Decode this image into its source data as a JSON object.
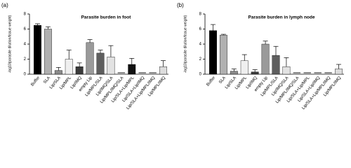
{
  "chart_data": [
    {
      "type": "bar",
      "panel": "(a)",
      "title": "Parasite burden in foot",
      "ylabel": "-log10(parasite dilution/tissue weight)",
      "categories": [
        "Buffer",
        "SLA",
        "Lip/SLA",
        "Lip/MPL",
        "Lip/IMQ",
        "empty Lip",
        "Lip/MPL/SLA",
        "Lip/IMQ/SLA",
        "Lip/MPL/IMQ/SLA",
        "Lip/SLA+Lip/MPL",
        "Lip/SLA+Lip/IMQ",
        "Lip/SLA+Lip/MPL/IMQ",
        "Lip/MPL/IMQ"
      ],
      "values": [
        6.5,
        6.0,
        0.5,
        2.0,
        1.0,
        4.2,
        2.8,
        2.3,
        0,
        1.3,
        0,
        0,
        1.0
      ],
      "errors": [
        0.2,
        0.3,
        0.4,
        1.2,
        0.5,
        0.4,
        0.4,
        1.5,
        0,
        0.8,
        0,
        0,
        0.8
      ],
      "colors": [
        "#000000",
        "#b0b0b0",
        "#8a8a8a",
        "#efefef",
        "#3a3a3a",
        "#9a9a9a",
        "#5e5e5e",
        "#e2e2e2",
        "#cfcfcf",
        "#111111",
        "#888888",
        "#555555",
        "#dddddd"
      ],
      "ylim": [
        0,
        8
      ],
      "yticks": [
        0,
        2,
        4,
        6,
        8
      ]
    },
    {
      "type": "bar",
      "panel": "(b)",
      "title": "Parasite burden in lymph node",
      "ylabel": "-log10(parasite dilution/tissue weight)",
      "categories": [
        "Buffer",
        "SLA",
        "Lip/SLA",
        "Lip/MPL",
        "Lip/IMQ",
        "empty Lip",
        "Lip/MPL/SLA",
        "Lip/IMQ/SLA",
        "Lip/MPL/IMQ/SLA",
        "Lip/SLA+Lip/MPL",
        "Lip/SLA+Lip/IMQ",
        "Lip/SLA+Lip/MPL/IMQ",
        "Lip/MPL/IMQ"
      ],
      "values": [
        5.8,
        5.2,
        0.4,
        1.8,
        0.3,
        4.0,
        2.5,
        1.0,
        0,
        0,
        0,
        0,
        0.7
      ],
      "errors": [
        0.8,
        0.1,
        0.3,
        0.8,
        0.3,
        0.4,
        1.2,
        1.2,
        0,
        0,
        0,
        0,
        0.6
      ],
      "colors": [
        "#000000",
        "#b0b0b0",
        "#8a8a8a",
        "#efefef",
        "#3a3a3a",
        "#9a9a9a",
        "#5e5e5e",
        "#e2e2e2",
        "#cfcfcf",
        "#111111",
        "#888888",
        "#555555",
        "#dddddd"
      ],
      "ylim": [
        0,
        8
      ],
      "yticks": [
        0,
        2,
        4,
        6,
        8
      ]
    }
  ]
}
